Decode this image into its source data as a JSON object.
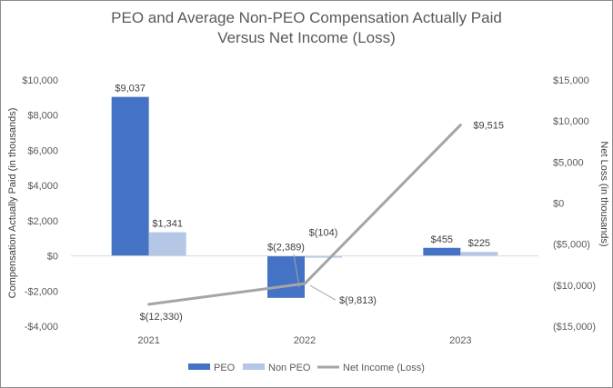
{
  "chart_data": {
    "type": "bar",
    "title_line1": "PEO and Average Non-PEO Compensation Actually Paid",
    "title_line2": "Versus Net Income (Loss)",
    "ylabel": "Compensation Actually Paid (in thousands)",
    "y2label": "Net Loss (in thousands)",
    "categories": [
      "2021",
      "2022",
      "2023"
    ],
    "ylim": [
      -4000,
      10000
    ],
    "y_ticks": [
      10000,
      8000,
      6000,
      4000,
      2000,
      0,
      -2000,
      -4000
    ],
    "y_tick_labels": [
      "$10,000",
      "$8,000",
      "$6,000",
      "$4,000",
      "$2,000",
      "$0",
      "-$2,000",
      "-$4,000"
    ],
    "y2lim": [
      -15000,
      15000
    ],
    "y2_ticks": [
      15000,
      10000,
      5000,
      0,
      -5000,
      -10000,
      -15000
    ],
    "y2_tick_labels": [
      "$15,000",
      "$10,000",
      "$5,000",
      "$0",
      "($5,000)",
      "($10,000)",
      "($15,000)"
    ],
    "series": [
      {
        "name": "PEO",
        "kind": "bar",
        "axis": "left",
        "color": "#4472c4",
        "values": [
          9037,
          -2389,
          455
        ],
        "labels": [
          "$9,037",
          "$(2,389)",
          "$455"
        ]
      },
      {
        "name": "Non PEO",
        "kind": "bar",
        "axis": "left",
        "color": "#b4c7e7",
        "values": [
          1341,
          -104,
          225
        ],
        "labels": [
          "$1,341",
          "$(104)",
          "$225"
        ]
      },
      {
        "name": "Net Income (Loss)",
        "kind": "line",
        "axis": "right",
        "color": "#a5a5a5",
        "values": [
          -12330,
          -9813,
          9515
        ],
        "labels": [
          "$(12,330)",
          "$(9,813)",
          "$9,515"
        ]
      }
    ],
    "legend_position": "bottom",
    "grid": false
  }
}
